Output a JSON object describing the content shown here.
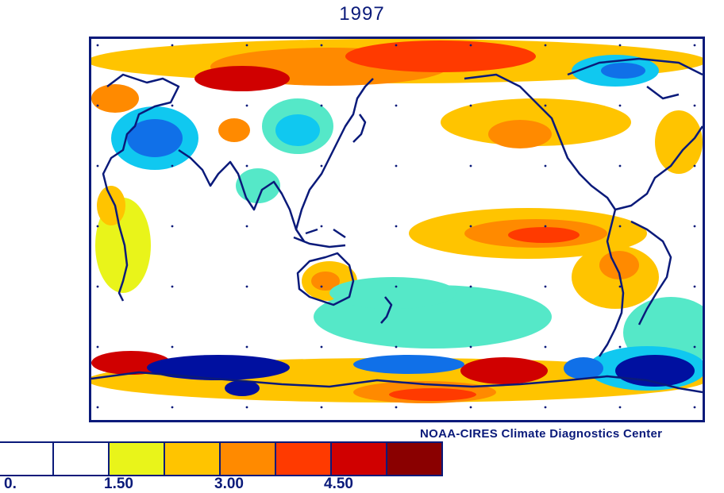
{
  "title": "1997",
  "credit": "NOAA-CIRES Climate Diagnostics Center",
  "colorbar": {
    "colors": [
      "#ffffff",
      "#ffffff",
      "#e9f41a",
      "#ffc400",
      "#ff8a00",
      "#ff3a00",
      "#d00000",
      "#8a0000"
    ],
    "ticks": [
      {
        "label": "0.",
        "value": 0
      },
      {
        "label": "1.50",
        "value": 1.5
      },
      {
        "label": "3.00",
        "value": 3.0
      },
      {
        "label": "4.50",
        "value": 4.5
      }
    ]
  },
  "map": {
    "projection": "cylindrical equidistant, Pacific-centered",
    "colors": {
      "coastline": "#0a1a7a",
      "frame": "#0a1a7a",
      "warm_weak": "#e9f41a",
      "warm_mid": "#ffc400",
      "warm_strong": "#ff8a00",
      "warm_stronger": "#ff3a00",
      "hot": "#d00000",
      "hottest": "#8a0000",
      "cool_weak": "#55e8c8",
      "cool_mid": "#10c8f0",
      "cool_strong": "#1070e8",
      "cold": "#0010a0"
    }
  }
}
